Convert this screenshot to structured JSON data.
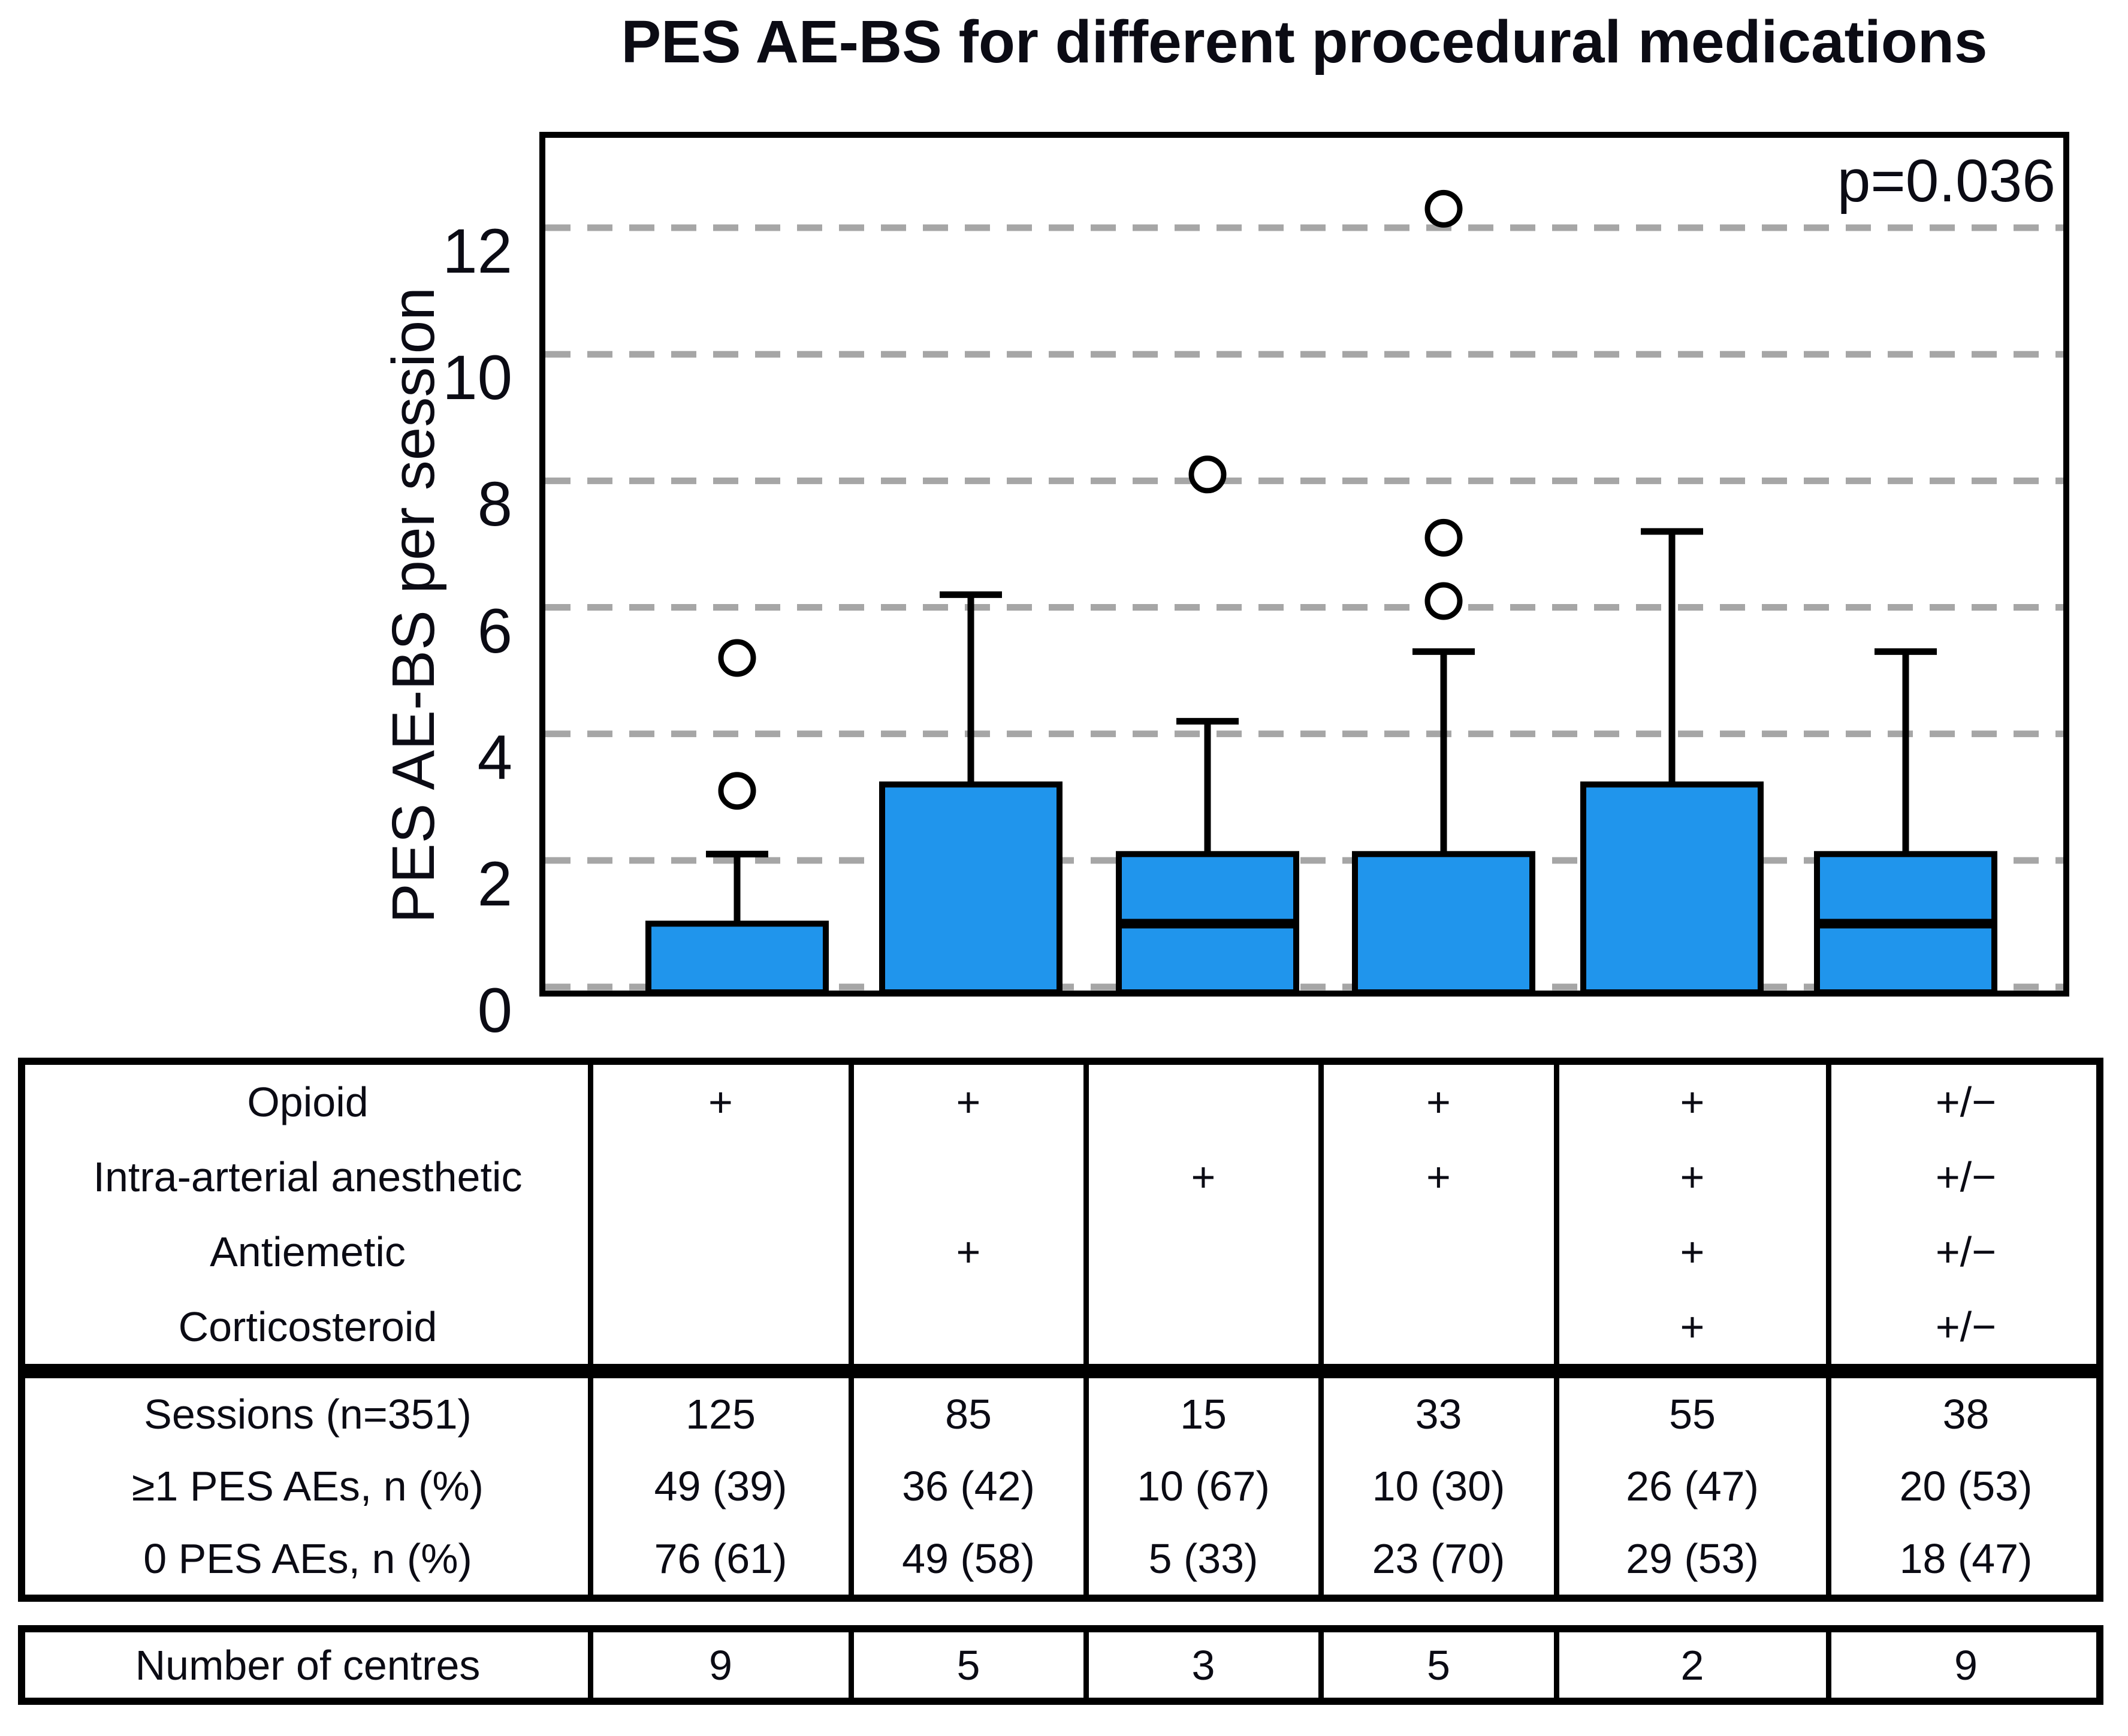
{
  "chart_data": {
    "type": "box",
    "title": "PES AE-BS for different procedural medications",
    "ylabel": "PES AE-BS per session",
    "xlabel": "",
    "p_value": "p=0.036",
    "ylim": [
      0,
      13.5
    ],
    "yticks": [
      0,
      2,
      4,
      6,
      8,
      10,
      12
    ],
    "grid": "horizontal-dashed",
    "legend": "none",
    "box_fill_color": "#2095EC",
    "grid_color": "#A6A6A6",
    "groups": [
      {
        "q1": 0,
        "median": 0,
        "q3": 1.0,
        "whisker_low": 0,
        "whisker_high": 2.1,
        "outliers": [
          3.1,
          5.2
        ]
      },
      {
        "q1": 0,
        "median": 0,
        "q3": 3.2,
        "whisker_low": 0,
        "whisker_high": 6.2,
        "outliers": []
      },
      {
        "q1": 0,
        "median": 1.0,
        "q3": 2.1,
        "whisker_low": 0,
        "whisker_high": 4.2,
        "outliers": [
          8.1
        ]
      },
      {
        "q1": 0,
        "median": 0,
        "q3": 2.1,
        "whisker_low": 0,
        "whisker_high": 5.3,
        "outliers": [
          6.1,
          7.1,
          12.3
        ]
      },
      {
        "q1": 0,
        "median": 0,
        "q3": 3.2,
        "whisker_low": 0,
        "whisker_high": 7.2,
        "outliers": []
      },
      {
        "q1": 0,
        "median": 1.0,
        "q3": 2.1,
        "whisker_low": 0,
        "whisker_high": 5.3,
        "outliers": []
      }
    ]
  },
  "table": {
    "medication_rows": [
      {
        "label": "Opioid",
        "cells": [
          "+",
          "+",
          "",
          "+",
          "+",
          "+/−"
        ]
      },
      {
        "label": "Intra-arterial anesthetic",
        "cells": [
          "",
          "",
          "+",
          "+",
          "+",
          "+/−"
        ]
      },
      {
        "label": "Antiemetic",
        "cells": [
          "",
          "+",
          "",
          "",
          "+",
          "+/−"
        ]
      },
      {
        "label": "Corticosteroid",
        "cells": [
          "",
          "",
          "",
          "",
          "+",
          "+/−"
        ]
      }
    ],
    "stats_rows": [
      {
        "label": "Sessions (n=351)",
        "cells": [
          "125",
          "85",
          "15",
          "33",
          "55",
          "38"
        ]
      },
      {
        "label": "≥1 PES AEs, n (%)",
        "cells": [
          "49 (39)",
          "36 (42)",
          "10 (67)",
          "10 (30)",
          "26 (47)",
          "20 (53)"
        ]
      },
      {
        "label": "0 PES AEs, n (%)",
        "cells": [
          "76 (61)",
          "49 (58)",
          "5 (33)",
          "23 (70)",
          "29 (53)",
          "18 (47)"
        ]
      }
    ],
    "centres_row": {
      "label": "Number of centres",
      "cells": [
        "9",
        "5",
        "3",
        "5",
        "2",
        "9"
      ]
    }
  }
}
